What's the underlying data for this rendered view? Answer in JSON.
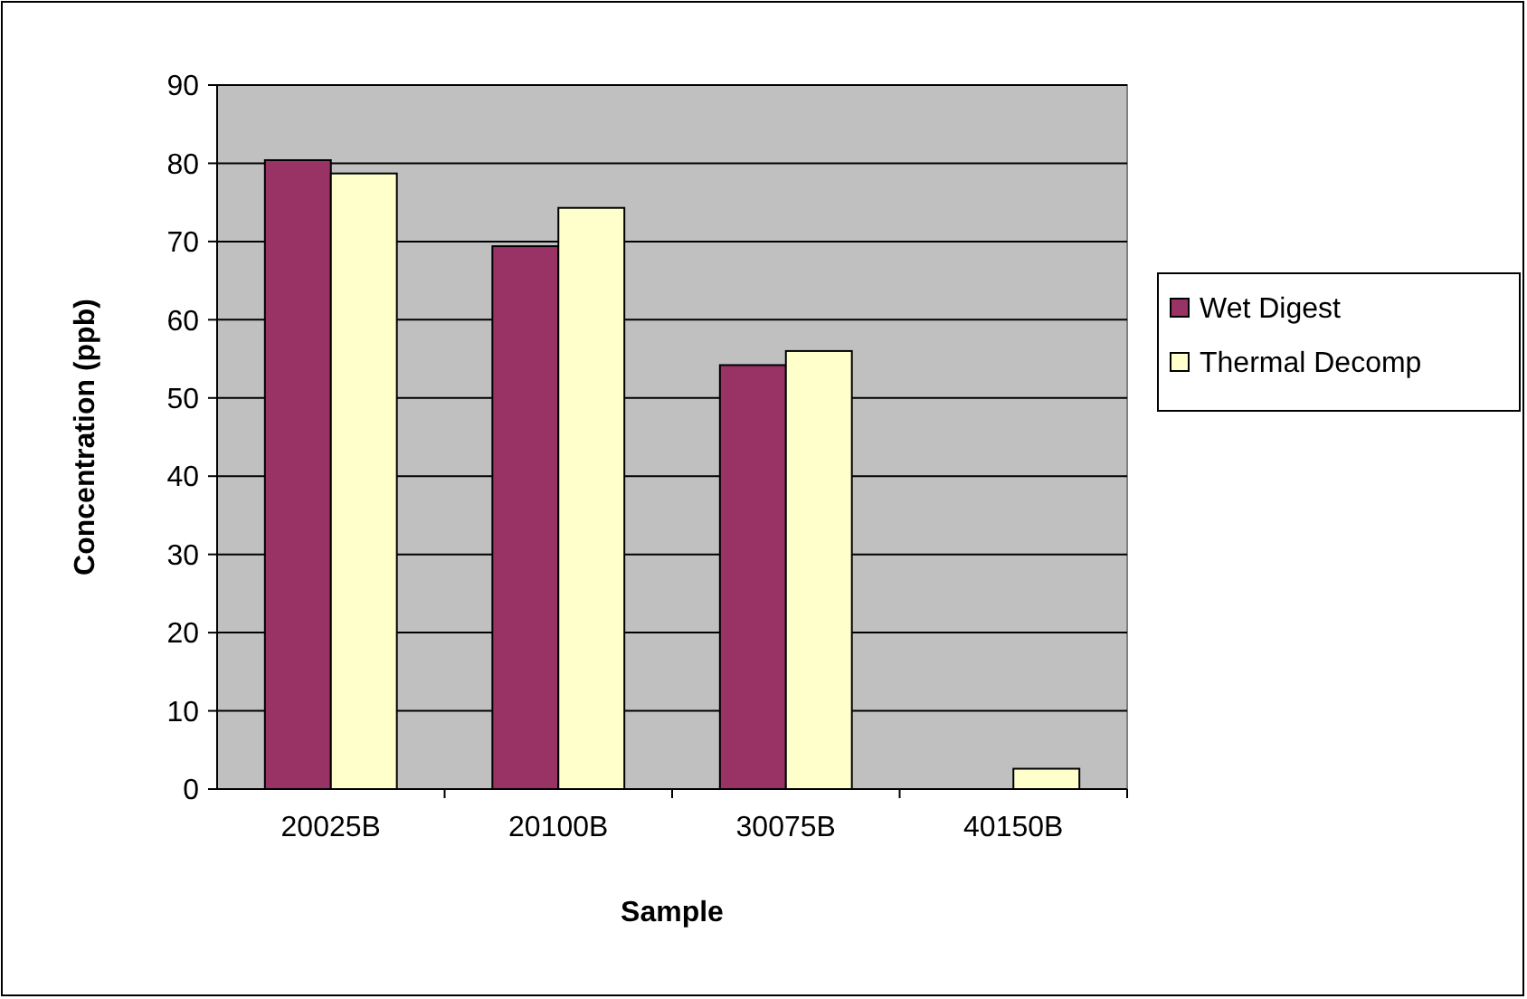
{
  "chart_data": {
    "type": "bar",
    "xlabel": "Sample",
    "ylabel": "Concentration (ppb)",
    "categories": [
      "20025B",
      "20100B",
      "30075B",
      "40150B"
    ],
    "series": [
      {
        "name": "Wet Digest",
        "color": "#993366",
        "values": [
          80.4,
          69.4,
          54.2,
          null
        ]
      },
      {
        "name": "Thermal Decomp",
        "color": "#ffffcc",
        "values": [
          78.7,
          74.3,
          56.0,
          2.6
        ]
      }
    ],
    "ylim": [
      0,
      90
    ],
    "yticks": [
      0,
      10,
      20,
      30,
      40,
      50,
      60,
      70,
      80,
      90
    ],
    "grid": "y",
    "legend": "right"
  }
}
